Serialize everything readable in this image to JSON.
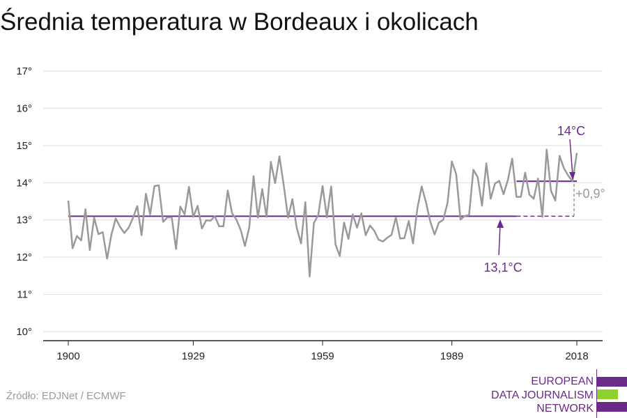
{
  "header": {
    "title": "Średnia temperatura w Bordeaux i okolicach"
  },
  "footer": {
    "source": "Źródło: EDJNet / ECMWF"
  },
  "logo": {
    "lines": [
      "EUROPEAN",
      "DATA JOURNALISM",
      "NETWORK"
    ],
    "colors": {
      "purple": "#6b2a8a",
      "green": "#8fd12f"
    }
  },
  "chart_data": {
    "type": "line",
    "title": "Średnia temperatura w Bordeaux i okolicach",
    "xlabel": "",
    "ylabel": "",
    "xlim": [
      1900,
      2018
    ],
    "ylim": [
      10,
      17
    ],
    "x_ticks": [
      "1900",
      "1929",
      "1959",
      "1989",
      "2018"
    ],
    "x_tick_values": [
      1900,
      1929,
      1959,
      1989,
      2018
    ],
    "y_ticks": [
      "10°",
      "11°",
      "12°",
      "13°",
      "14°",
      "15°",
      "16°",
      "17°"
    ],
    "y_tick_values": [
      10,
      11,
      12,
      13,
      14,
      15,
      16,
      17
    ],
    "grid": "horizontal",
    "series": [
      {
        "color": "#999999",
        "x_start": 1900,
        "values": [
          13.52,
          12.24,
          12.57,
          12.45,
          13.29,
          12.19,
          13.06,
          12.62,
          12.67,
          11.96,
          12.6,
          13.04,
          12.82,
          12.65,
          12.79,
          13.05,
          13.37,
          12.59,
          13.7,
          13.15,
          13.91,
          13.93,
          12.95,
          13.07,
          13.07,
          12.22,
          13.36,
          13.15,
          13.89,
          13.08,
          13.38,
          12.77,
          12.99,
          12.98,
          13.1,
          12.83,
          12.83,
          13.79,
          13.18,
          13.01,
          12.73,
          12.3,
          12.8,
          14.18,
          13.06,
          13.83,
          13.08,
          14.56,
          13.99,
          14.71,
          13.93,
          13.06,
          13.56,
          12.79,
          12.37,
          13.48,
          11.48,
          12.92,
          13.13,
          13.91,
          13.07,
          13.9,
          12.34,
          12.03,
          12.93,
          12.49,
          13.15,
          12.79,
          13.18,
          12.59,
          12.85,
          12.71,
          12.47,
          12.42,
          12.52,
          12.6,
          13.07,
          12.5,
          12.51,
          12.97,
          12.37,
          13.31,
          13.9,
          13.47,
          12.95,
          12.61,
          12.93,
          13.0,
          13.46,
          14.57,
          14.23,
          13.01,
          13.11,
          13.13,
          14.35,
          14.15,
          13.38,
          14.52,
          13.57,
          13.98,
          14.05,
          13.69,
          14.07,
          14.65,
          13.62,
          13.62,
          14.27,
          13.68,
          13.57,
          14.11,
          13.08,
          14.89,
          13.78,
          13.52,
          14.72,
          14.39,
          14.19,
          14.04,
          14.8
        ]
      }
    ],
    "reference_lines": [
      {
        "label": "13,1°C",
        "value": 13.1,
        "from": 1900,
        "to": 2018,
        "color": "#6b2a8a",
        "dashed_from": 2004
      },
      {
        "label": "14°C",
        "value": 14.04,
        "from": 2004,
        "to": 2018,
        "color": "#6b2a8a"
      }
    ],
    "annotations": [
      {
        "text": "14°C",
        "color": "#6b2a8a"
      },
      {
        "text": "13,1°C",
        "color": "#6b2a8a"
      },
      {
        "text": "+0,9°",
        "color": "#999999"
      }
    ]
  }
}
